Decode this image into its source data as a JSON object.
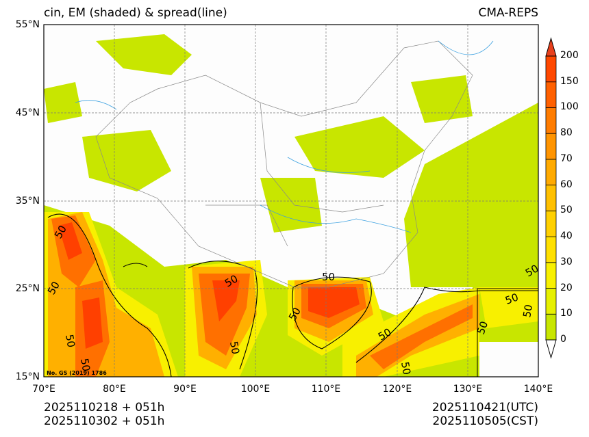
{
  "title_left": "cin, EM (shaded) & spread(line)",
  "title_right": "CMA-REPS",
  "watermark": "No. GS (2019) 1786",
  "lat_ticks": [
    "55°N",
    "45°N",
    "35°N",
    "25°N",
    "15°N"
  ],
  "lon_ticks": [
    "70°E",
    "80°E",
    "90°E",
    "100°E",
    "110°E",
    "120°E",
    "130°E",
    "140°E"
  ],
  "colorbar": {
    "levels": [
      "0",
      "10",
      "20",
      "30",
      "40",
      "50",
      "60",
      "70",
      "80",
      "100",
      "150",
      "200"
    ],
    "colors": [
      "#c8e600",
      "#e6f000",
      "#f8f000",
      "#ffe000",
      "#ffd000",
      "#ffc000",
      "#ffaa00",
      "#ff9400",
      "#ff7c00",
      "#ff6000",
      "#ff4800"
    ],
    "over_color": "#e8401c",
    "under_color": "#ffffff"
  },
  "contour_labels": [
    "50",
    "50",
    "50",
    "50",
    "50",
    "50",
    "50",
    "50",
    "50",
    "50",
    "50",
    "50",
    "50",
    "50"
  ],
  "footer": {
    "init_utc": "2025110218  +  051h",
    "init_cst": "2025110302  +  051h",
    "valid_utc": "2025110421(UTC)",
    "valid_cst": "2025110505(CST)"
  }
}
